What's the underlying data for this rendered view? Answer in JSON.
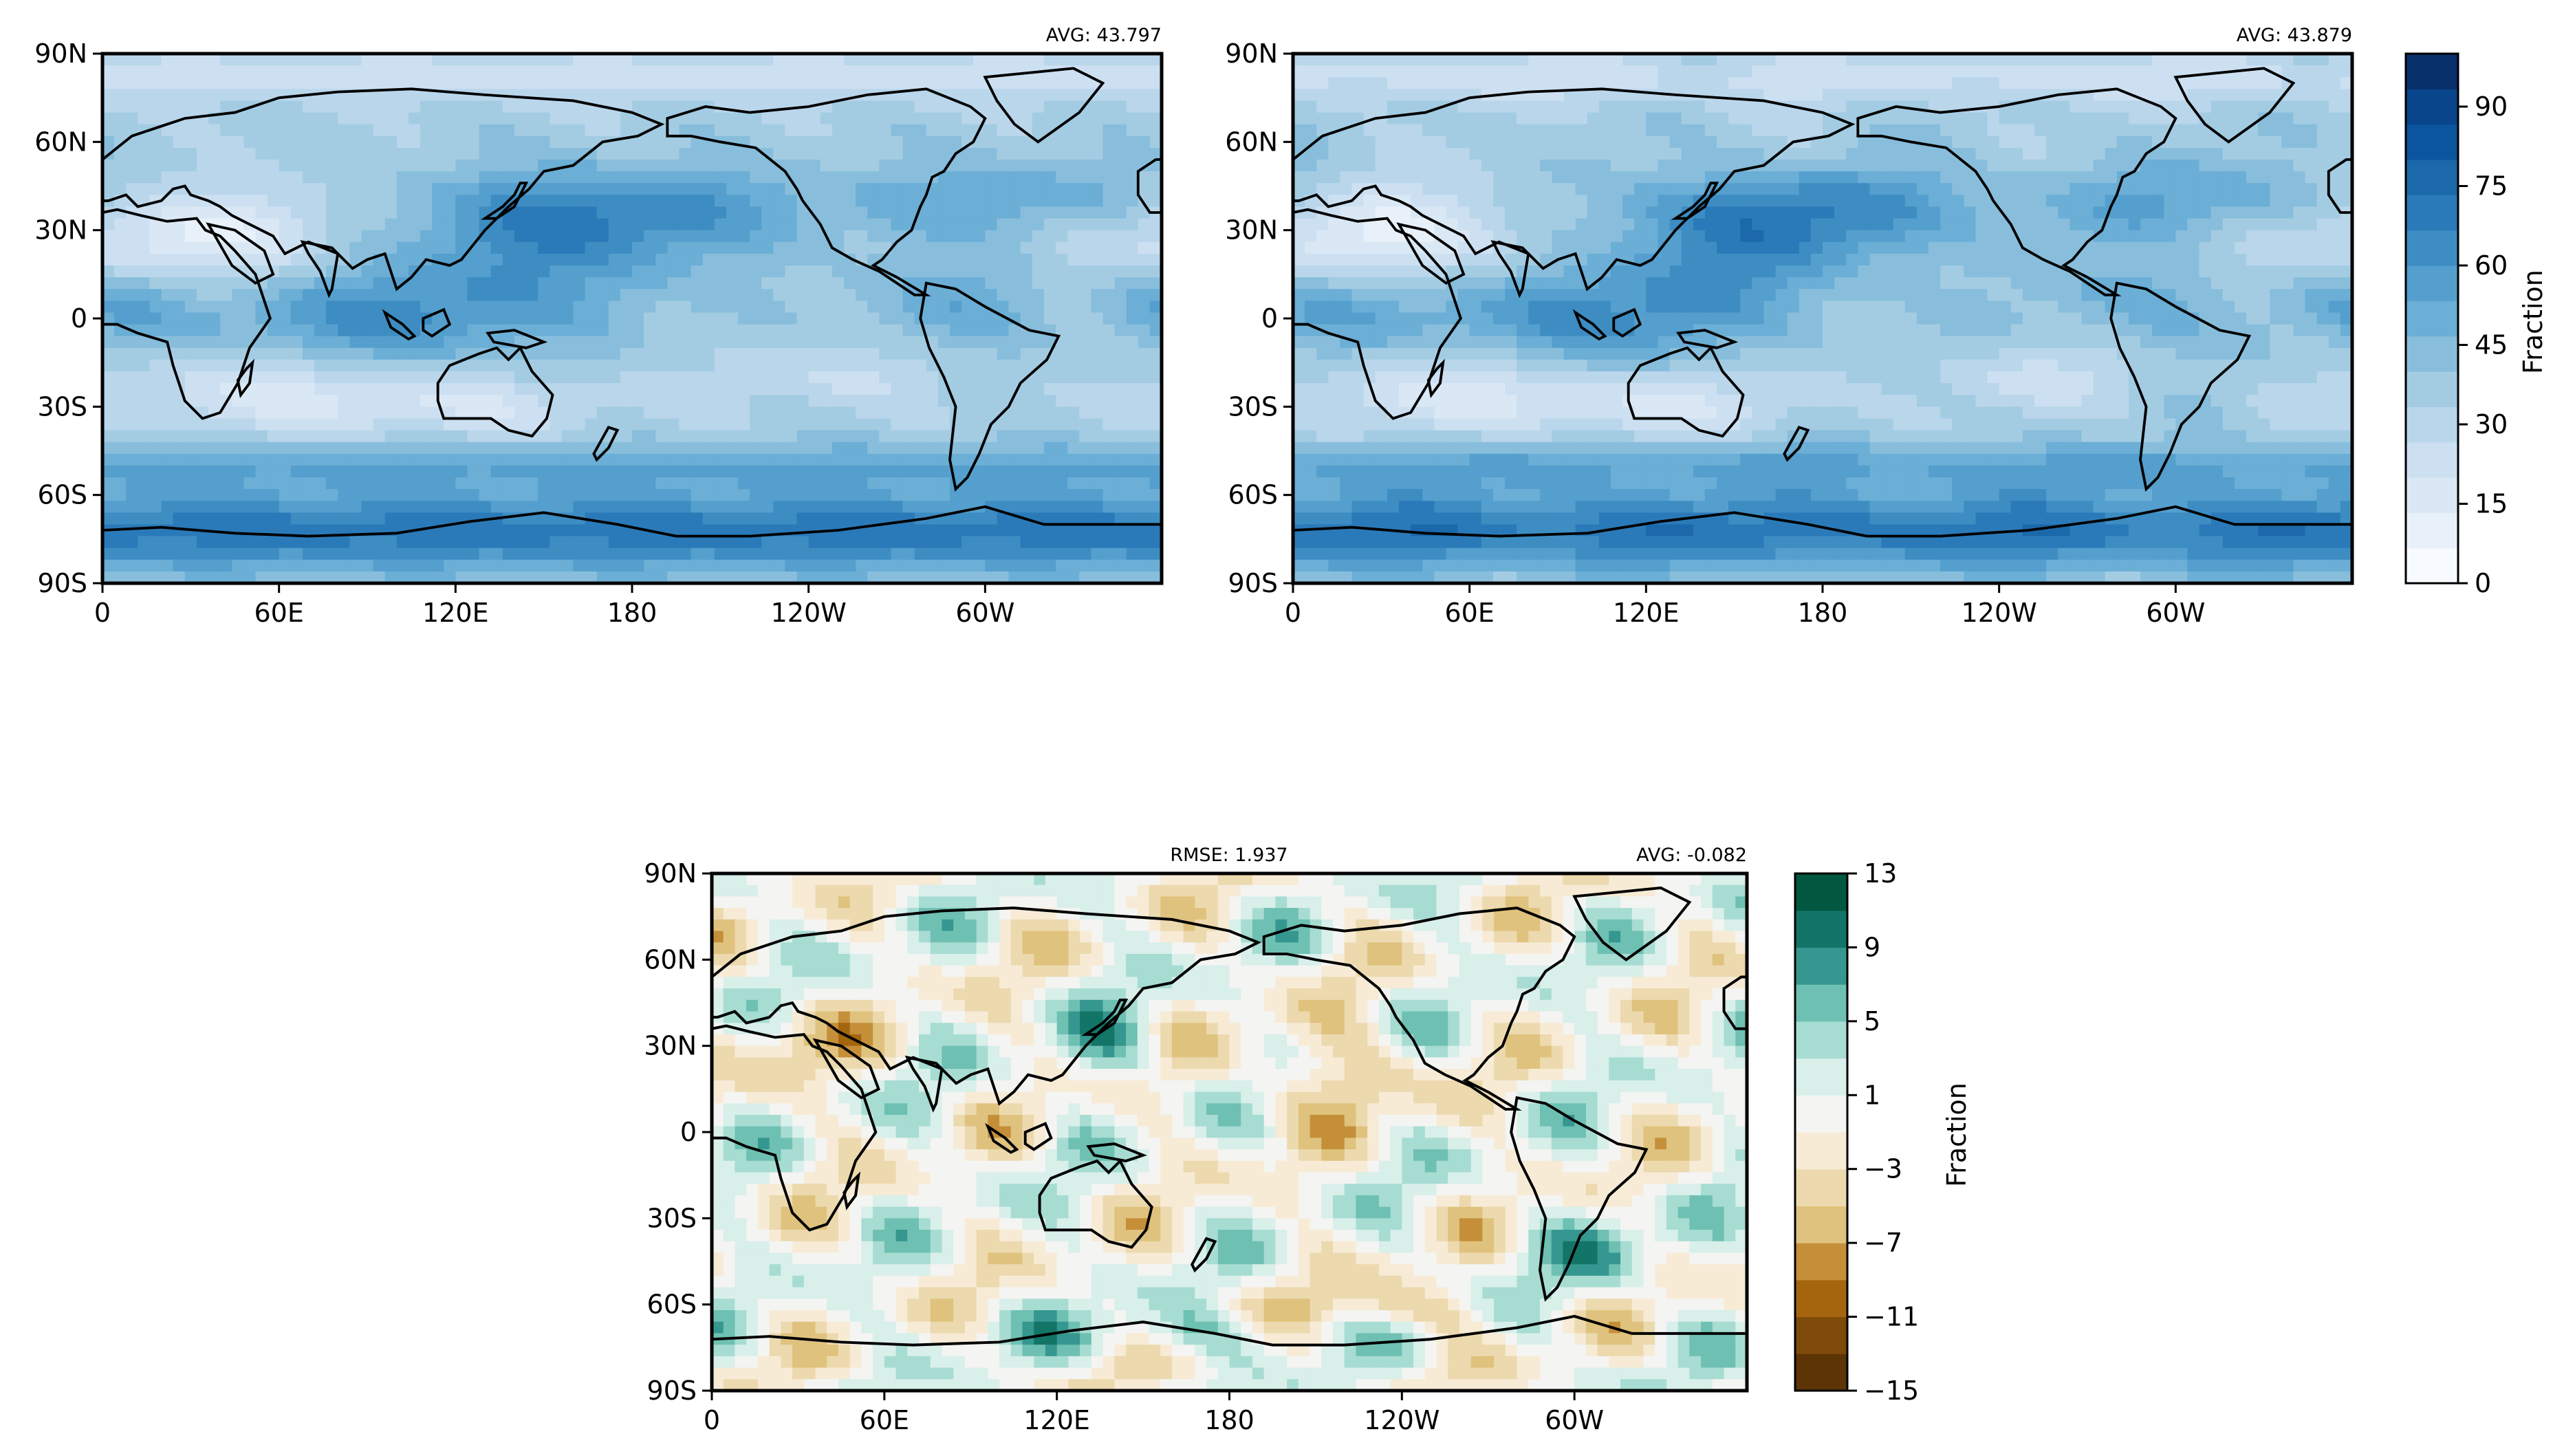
{
  "colors": {
    "blues": [
      "#f7fbff",
      "#e8f1fa",
      "#dae8f5",
      "#cde0f1",
      "#bad6eb",
      "#a3cce3",
      "#88bedc",
      "#6baed6",
      "#549fcd",
      "#3d8dc3",
      "#2a7ab9",
      "#1b68ab",
      "#0b559f",
      "#08458a",
      "#08306b"
    ],
    "diverging": [
      "#5c3406",
      "#7d4a09",
      "#a5650f",
      "#c58f3a",
      "#dfc27d",
      "#ecd9ae",
      "#f7ebd6",
      "#f4f4f2",
      "#d8efea",
      "#a7dcd2",
      "#6ec0b2",
      "#35978f",
      "#137567",
      "#01573f"
    ],
    "continents": "#000000"
  },
  "chart_data": [
    {
      "id": "panel-top-left",
      "type": "heatmap",
      "projection": "plate-carree",
      "xticks": [
        "0",
        "60E",
        "120E",
        "180",
        "120W",
        "60W"
      ],
      "yticks": [
        "90N",
        "60N",
        "30N",
        "0",
        "30S",
        "60S",
        "90S"
      ],
      "xlim": [
        0,
        360
      ],
      "ylim": [
        -90,
        90
      ],
      "colormap": "blues",
      "value_range": [
        0,
        100
      ],
      "avg_label": "AVG: 43.797",
      "rmse_label": ""
    },
    {
      "id": "panel-top-right",
      "type": "heatmap",
      "projection": "plate-carree",
      "xticks": [
        "0",
        "60E",
        "120E",
        "180",
        "120W",
        "60W"
      ],
      "yticks": [
        "90N",
        "60N",
        "30N",
        "0",
        "30S",
        "60S",
        "90S"
      ],
      "xlim": [
        0,
        360
      ],
      "ylim": [
        -90,
        90
      ],
      "colormap": "blues",
      "value_range": [
        0,
        100
      ],
      "avg_label": "AVG: 43.879",
      "rmse_label": ""
    },
    {
      "id": "panel-bottom-diff",
      "type": "heatmap",
      "projection": "plate-carree",
      "xticks": [
        "0",
        "60E",
        "120E",
        "180",
        "120W",
        "60W"
      ],
      "yticks": [
        "90N",
        "60N",
        "30N",
        "0",
        "30S",
        "60S",
        "90S"
      ],
      "xlim": [
        0,
        360
      ],
      "ylim": [
        -90,
        90
      ],
      "colormap": "diverging",
      "value_range": [
        -15,
        13
      ],
      "avg_label": "AVG: -0.082",
      "rmse_label": "RMSE: 1.937"
    }
  ],
  "colorbars": {
    "top": {
      "label": "Fraction",
      "ticks": [
        "0",
        "15",
        "30",
        "45",
        "60",
        "75",
        "90"
      ],
      "values": [
        0,
        15,
        30,
        45,
        60,
        75,
        90
      ],
      "range": [
        0,
        100
      ]
    },
    "bottom": {
      "label": "Fraction",
      "ticks": [
        "13",
        "9",
        "5",
        "1",
        "−3",
        "−7",
        "−11",
        "−15"
      ],
      "values": [
        13,
        9,
        5,
        1,
        -3,
        -7,
        -11,
        -15
      ],
      "range": [
        -15,
        13
      ]
    }
  }
}
